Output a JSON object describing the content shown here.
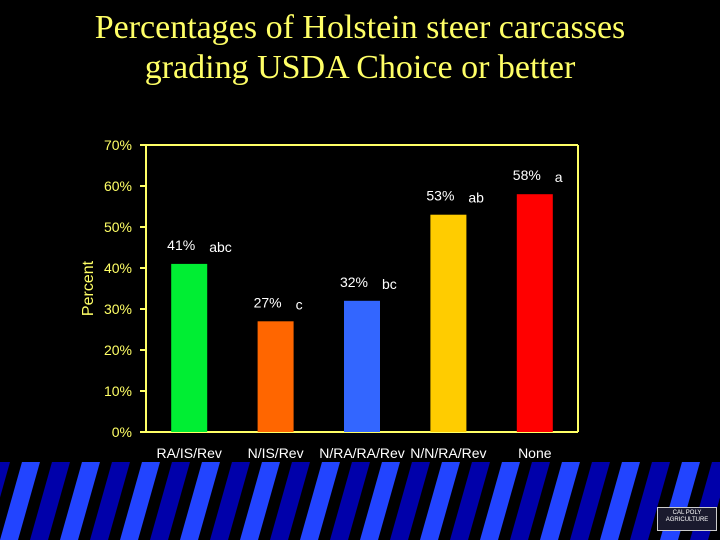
{
  "title_lines": [
    "Percentages of Holstein steer carcasses",
    "grading USDA Choice or better"
  ],
  "logo": {
    "line1": "CAL POLY",
    "line2": "AGRICULTURE"
  },
  "colors": {
    "title": "#ffff66",
    "axis": "#ffff66",
    "background": "#000000",
    "stripe_dark": "#0000aa",
    "stripe_light": "#2244ff"
  },
  "chart_data": {
    "type": "bar",
    "categories": [
      "RA/IS/Rev",
      "N/IS/Rev",
      "N/RA/RA/Rev",
      "N/N/RA/Rev",
      "None"
    ],
    "values": [
      41,
      27,
      32,
      53,
      58
    ],
    "value_labels": [
      "41%",
      "27%",
      "32%",
      "53%",
      "58%"
    ],
    "significance_letters": [
      "abc",
      "c",
      "bc",
      "ab",
      "a"
    ],
    "bar_colors": [
      "#00ee33",
      "#ff6600",
      "#3366ff",
      "#ffcc00",
      "#ff0000"
    ],
    "ylabel": "Percent",
    "xlabel": "",
    "ylim": [
      0,
      70
    ],
    "yticks": [
      "0%",
      "10%",
      "20%",
      "30%",
      "40%",
      "50%",
      "60%",
      "70%"
    ],
    "grid": false
  }
}
